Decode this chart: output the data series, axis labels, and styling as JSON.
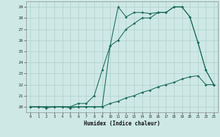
{
  "xlabel": "Humidex (Indice chaleur)",
  "xlim": [
    -0.5,
    23.5
  ],
  "ylim": [
    19.5,
    29.5
  ],
  "yticks": [
    20,
    21,
    22,
    23,
    24,
    25,
    26,
    27,
    28,
    29
  ],
  "xticks": [
    0,
    1,
    2,
    3,
    4,
    5,
    6,
    7,
    8,
    9,
    10,
    11,
    12,
    13,
    14,
    15,
    16,
    17,
    18,
    19,
    20,
    21,
    22,
    23
  ],
  "background_color": "#cde8e5",
  "grid_color": "#aecfcc",
  "line_color": "#1a6b5a",
  "line1": {
    "x": [
      0,
      1,
      2,
      3,
      4,
      5,
      6,
      7,
      8,
      9,
      10,
      11,
      12,
      13,
      14,
      15,
      16,
      17,
      18,
      19,
      20,
      21,
      22,
      23
    ],
    "y": [
      20,
      20,
      19.9,
      20,
      20,
      19.9,
      20,
      20,
      20,
      20,
      25.5,
      29,
      28.1,
      28.5,
      28.5,
      28.4,
      28.5,
      28.5,
      29,
      29,
      28.1,
      25.8,
      23.3,
      22
    ]
  },
  "line2": {
    "x": [
      0,
      1,
      2,
      3,
      4,
      5,
      6,
      7,
      8,
      9,
      10,
      11,
      12,
      13,
      14,
      15,
      16,
      17,
      18,
      19,
      20,
      21,
      22,
      23
    ],
    "y": [
      20,
      20,
      20,
      20,
      20,
      20,
      20.3,
      20.3,
      21,
      23.3,
      25.5,
      26,
      27,
      27.5,
      28,
      28,
      28.5,
      28.5,
      29,
      29,
      28.1,
      25.8,
      23.3,
      22
    ]
  },
  "line3": {
    "x": [
      0,
      1,
      2,
      3,
      4,
      5,
      6,
      7,
      8,
      9,
      10,
      11,
      12,
      13,
      14,
      15,
      16,
      17,
      18,
      19,
      20,
      21,
      22,
      23
    ],
    "y": [
      20,
      20,
      20,
      20,
      20,
      20,
      20,
      20,
      20,
      20,
      20.3,
      20.5,
      20.8,
      21,
      21.3,
      21.5,
      21.8,
      22,
      22.2,
      22.5,
      22.7,
      22.8,
      22,
      22
    ]
  }
}
